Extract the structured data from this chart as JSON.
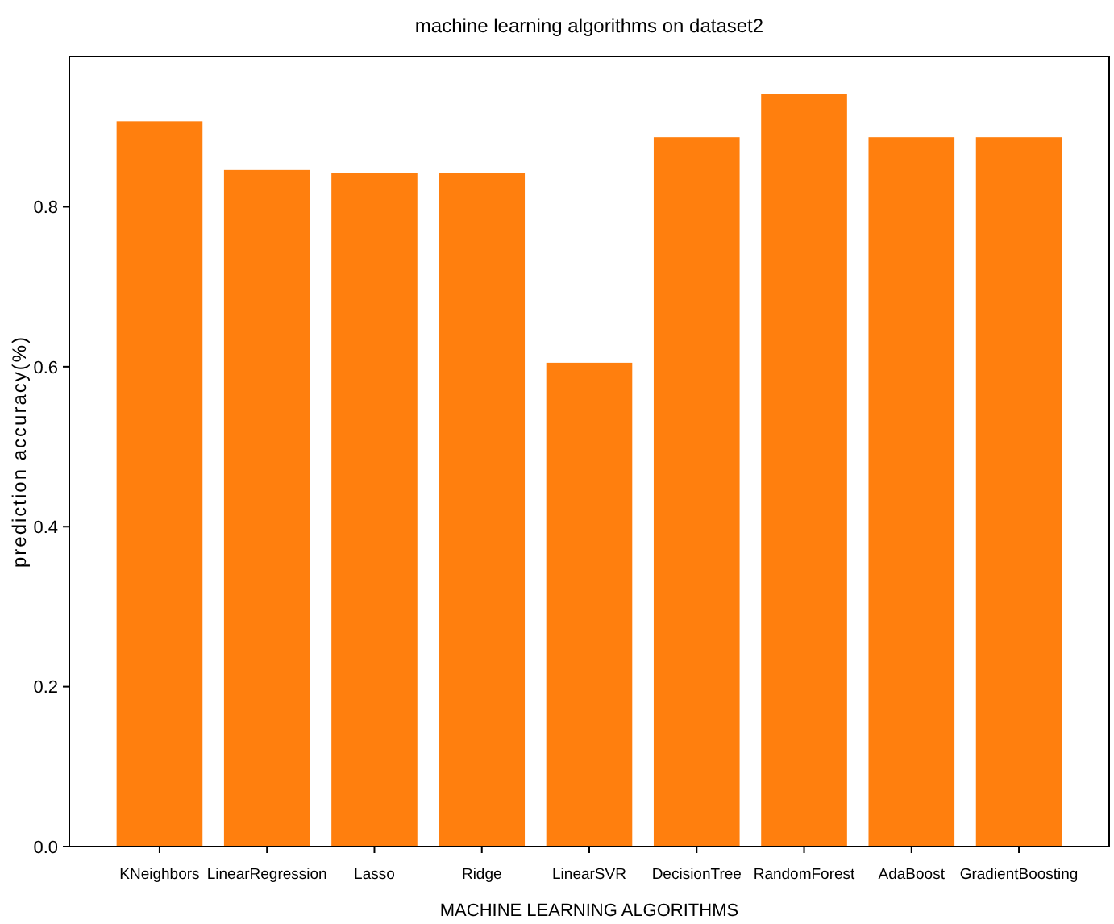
{
  "chart_data": {
    "type": "bar",
    "title": "machine learning algorithms on dataset2",
    "xlabel": "MACHINE LEARNING ALGORITHMS",
    "ylabel": "prediction accuracy(%)",
    "categories": [
      "KNeighbors",
      "LinearRegression",
      "Lasso",
      "Ridge",
      "LinearSVR",
      "DecisionTree",
      "RandomForest",
      "AdaBoost",
      "GradientBoosting"
    ],
    "values": [
      0.907,
      0.846,
      0.842,
      0.842,
      0.605,
      0.887,
      0.941,
      0.887,
      0.887
    ],
    "color": "#ff7f0e",
    "ylim": [
      0,
      0.988
    ],
    "yticks": [
      {
        "value": 0,
        "label": "0.0"
      },
      {
        "value": 0.2,
        "label": "0.2"
      },
      {
        "value": 0.4,
        "label": "0.4"
      },
      {
        "value": 0.6,
        "label": "0.6"
      },
      {
        "value": 0.8,
        "label": "0.8"
      }
    ],
    "grid": false
  }
}
